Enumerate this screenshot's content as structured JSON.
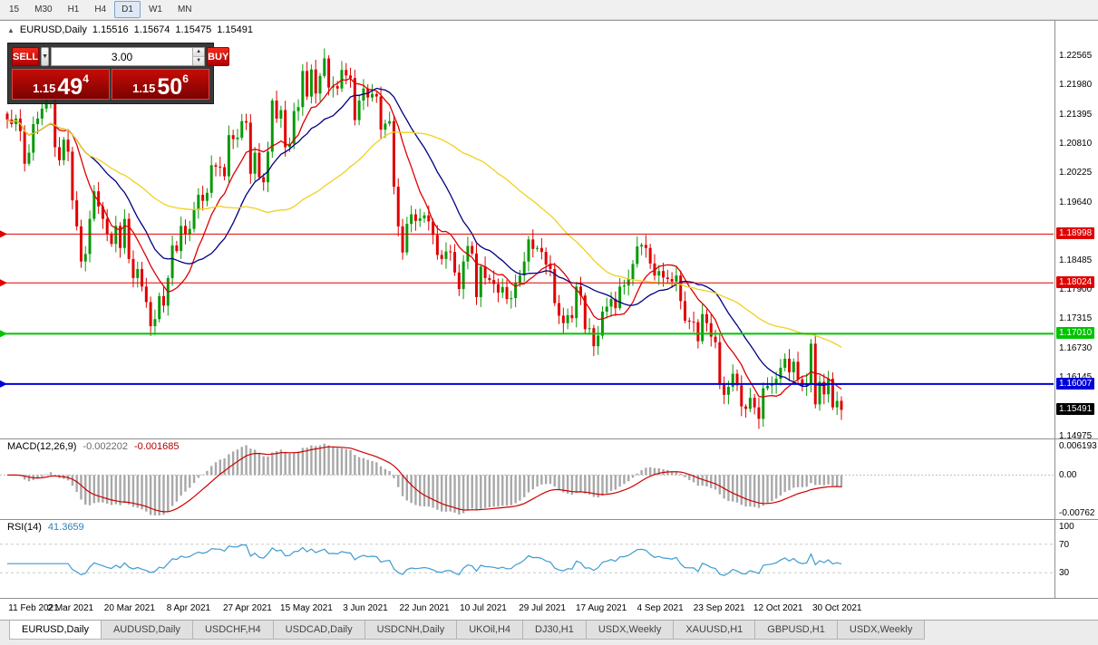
{
  "toolbar": {
    "timeframes": [
      {
        "label": "15",
        "active": false
      },
      {
        "label": "M30",
        "active": false
      },
      {
        "label": "H1",
        "active": false
      },
      {
        "label": "H4",
        "active": false
      },
      {
        "label": "D1",
        "active": true
      },
      {
        "label": "W1",
        "active": false
      },
      {
        "label": "MN",
        "active": false
      }
    ]
  },
  "header": {
    "icon": "▲",
    "symbol": "EURUSD,Daily",
    "open": "1.15516",
    "high": "1.15674",
    "low": "1.15475",
    "close": "1.15491"
  },
  "oneclick": {
    "sell_label": "SELL",
    "buy_label": "BUY",
    "volume": "3.00",
    "sell_price": {
      "base": "1.15",
      "big": "49",
      "sup": "4"
    },
    "buy_price": {
      "base": "1.15",
      "big": "50",
      "sup": "6"
    }
  },
  "chart_data": [
    {
      "type": "candlestick",
      "title": "EURUSD,Daily",
      "ohlc_display": [
        "1.15516",
        "1.15674",
        "1.15475",
        "1.15491"
      ],
      "y_range": [
        1.1492,
        1.2325
      ],
      "up_color": "#089a08",
      "down_color": "#e00000",
      "closes": [
        1.2128,
        1.2119,
        1.213,
        1.2105,
        1.204,
        1.2062,
        1.2119,
        1.213,
        1.215,
        1.2168,
        1.2176,
        1.2073,
        1.2047,
        1.2088,
        1.2064,
        1.1967,
        1.1915,
        1.1845,
        1.186,
        1.193,
        1.1985,
        1.1955,
        1.193,
        1.19,
        1.188,
        1.1916,
        1.1872,
        1.193,
        1.185,
        1.1812,
        1.183,
        1.1795,
        1.1764,
        1.1716,
        1.173,
        1.1776,
        1.1757,
        1.1812,
        1.1877,
        1.1866,
        1.1916,
        1.1899,
        1.191,
        1.1948,
        1.1978,
        1.1966,
        1.1982,
        1.2037,
        1.2034,
        1.2033,
        1.2015,
        1.2097,
        1.2089,
        1.2092,
        1.2125,
        1.2122,
        1.202,
        1.2062,
        1.2013,
        1.2003,
        1.2064,
        1.2166,
        1.213,
        1.2147,
        1.2073,
        1.208,
        1.2145,
        1.2153,
        1.2225,
        1.2174,
        1.2228,
        1.218,
        1.2215,
        1.225,
        1.2192,
        1.2195,
        1.219,
        1.2227,
        1.2216,
        1.2211,
        1.2127,
        1.2166,
        1.219,
        1.2172,
        1.2179,
        1.2174,
        1.2108,
        1.212,
        1.2125,
        1.1994,
        1.1915,
        1.1863,
        1.192,
        1.1939,
        1.1926,
        1.1931,
        1.1937,
        1.1925,
        1.1898,
        1.1858,
        1.185,
        1.1865,
        1.1864,
        1.1823,
        1.179,
        1.1845,
        1.1876,
        1.1861,
        1.1774,
        1.1835,
        1.1812,
        1.1808,
        1.18,
        1.1783,
        1.1794,
        1.177,
        1.1772,
        1.1802,
        1.1817,
        1.1845,
        1.1889,
        1.187,
        1.1872,
        1.1864,
        1.1839,
        1.183,
        1.1762,
        1.1737,
        1.1722,
        1.1738,
        1.1732,
        1.1795,
        1.1777,
        1.171,
        1.1712,
        1.1676,
        1.1697,
        1.1745,
        1.1755,
        1.177,
        1.1752,
        1.1795,
        1.1797,
        1.181,
        1.184,
        1.1875,
        1.1878,
        1.1872,
        1.1841,
        1.1817,
        1.1826,
        1.1813,
        1.181,
        1.1805,
        1.1817,
        1.1766,
        1.1727,
        1.1725,
        1.1724,
        1.1686,
        1.174,
        1.1722,
        1.1695,
        1.1684,
        1.1599,
        1.1579,
        1.1595,
        1.1621,
        1.1598,
        1.1556,
        1.1551,
        1.1573,
        1.1554,
        1.1531,
        1.1592,
        1.1597,
        1.1601,
        1.1611,
        1.1633,
        1.1651,
        1.1624,
        1.1645,
        1.161,
        1.1596,
        1.1602,
        1.1681,
        1.156,
        1.1605,
        1.158,
        1.1611,
        1.1554,
        1.1567,
        1.15491
      ],
      "moving_averages": [
        {
          "period": 10,
          "color": "#dd0000"
        },
        {
          "period": 20,
          "color": "#000080"
        },
        {
          "period": 50,
          "color": "#f0d020"
        }
      ],
      "hlines": [
        {
          "value": 1.18998,
          "label": "1.18998",
          "color": "#e00000",
          "width": 1
        },
        {
          "value": 1.18024,
          "label": "1.18024",
          "color": "#e00000",
          "width": 1
        },
        {
          "value": 1.1701,
          "label": "1.17010",
          "color": "#00c400",
          "width": 2
        },
        {
          "value": 1.16007,
          "label": "1.16007",
          "color": "#0000d8",
          "width": 2
        }
      ],
      "current_price": {
        "value": 1.15491,
        "label": "1.15491",
        "badge_color": "#000000"
      },
      "y_ticks": [
        "1.22565",
        "1.21980",
        "1.21395",
        "1.20810",
        "1.20225",
        "1.19640",
        "1.18485",
        "1.17900",
        "1.17315",
        "1.16730",
        "1.16145",
        "1.14975"
      ],
      "x_ticks": [
        "11 Feb 2021",
        "2 Mar 2021",
        "20 Mar 2021",
        "8 Apr 2021",
        "27 Apr 2021",
        "15 May 2021",
        "3 Jun 2021",
        "22 Jun 2021",
        "10 Jul 2021",
        "29 Jul 2021",
        "17 Aug 2021",
        "4 Sep 2021",
        "23 Sep 2021",
        "12 Oct 2021",
        "30 Oct 2021"
      ]
    },
    {
      "type": "macd",
      "label": "MACD(12,26,9)",
      "value_main": "-0.002202",
      "value_signal": "-0.001685",
      "params": {
        "fast": 12,
        "slow": 26,
        "signal": 9
      },
      "y_range": [
        -0.00762,
        0.006193
      ],
      "y_ticks": [
        "0.006193",
        "0.00",
        "-0.00762"
      ],
      "histogram_color": "#a8a8a8",
      "signal_color": "#cc0000"
    },
    {
      "type": "rsi",
      "label": "RSI(14)",
      "value": "41.3659",
      "period": 14,
      "levels": [
        70,
        30
      ],
      "y_range": [
        0,
        100
      ],
      "y_ticks": [
        "100",
        "70",
        "30"
      ],
      "line_color": "#3e9bd0"
    }
  ],
  "tabs": [
    {
      "label": "EURUSD,Daily",
      "active": true
    },
    {
      "label": "AUDUSD,Daily",
      "active": false
    },
    {
      "label": "USDCHF,H4",
      "active": false
    },
    {
      "label": "USDCAD,Daily",
      "active": false
    },
    {
      "label": "USDCNH,Daily",
      "active": false
    },
    {
      "label": "UKOil,H4",
      "active": false
    },
    {
      "label": "DJ30,H1",
      "active": false
    },
    {
      "label": "USDX,Weekly",
      "active": false
    },
    {
      "label": "XAUUSD,H1",
      "active": false
    },
    {
      "label": "GBPUSD,H1",
      "active": false
    },
    {
      "label": "USDX,Weekly",
      "active": false
    }
  ]
}
